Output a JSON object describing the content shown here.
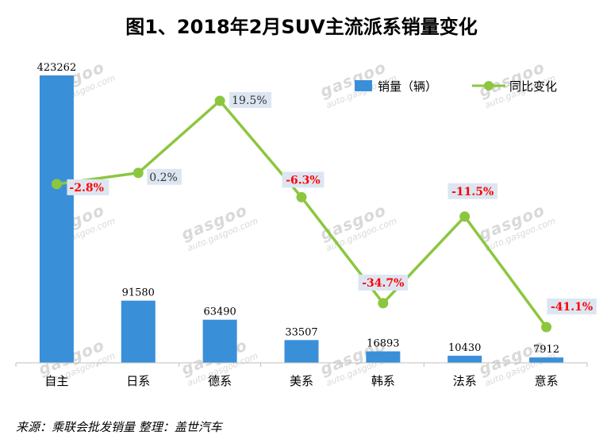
{
  "title": "图1、2018年2月SUV主流派系销量变化",
  "source_note": "来源：乘联会批发销量  整理：盖世汽车",
  "watermark": {
    "brand": "gasgoo",
    "cn": "盖世汽车",
    "url": "auto.gasgoo.com"
  },
  "colors": {
    "bar": "#3a8fd9",
    "line": "#8cc63f",
    "negative": "#ff0000",
    "positive": "#333333",
    "labelBg": "#dce6f2"
  },
  "chart_data": {
    "type": "bar",
    "categories": [
      "自主",
      "日系",
      "德系",
      "美系",
      "韩系",
      "法系",
      "意系"
    ],
    "series": [
      {
        "name": "销量（辆）",
        "type": "bar",
        "values": [
          423262,
          91580,
          63490,
          33507,
          16893,
          10430,
          7912
        ]
      },
      {
        "name": "同比变化",
        "type": "line",
        "values": [
          -2.8,
          0.2,
          19.5,
          -6.3,
          -34.7,
          -11.5,
          -41.1
        ],
        "labels": [
          "-2.8%",
          "0.2%",
          "19.5%",
          "-6.3%",
          "-34.7%",
          "-11.5%",
          "-41.1%"
        ]
      }
    ],
    "bar_labels": [
      "423262",
      "91580",
      "63490",
      "33507",
      "16893",
      "10430",
      "7912"
    ],
    "legend": {
      "position": "top-right"
    }
  }
}
